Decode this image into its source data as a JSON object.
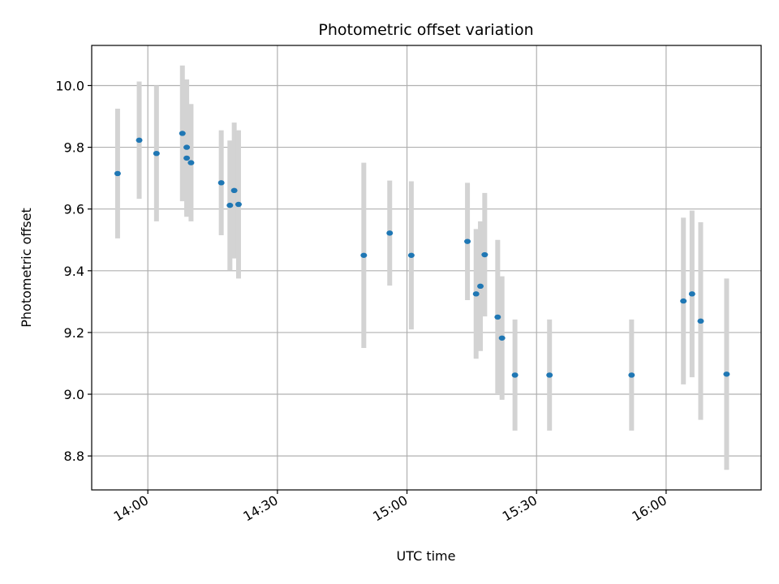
{
  "chart_data": {
    "type": "scatter",
    "title": "Photometric offset variation",
    "xlabel": "UTC time",
    "ylabel": "Photometric offset",
    "x_ticks": [
      "14:00",
      "14:30",
      "15:00",
      "15:30",
      "16:00"
    ],
    "y_ticks": [
      "8.8",
      "9.0",
      "9.2",
      "9.4",
      "9.6",
      "9.8",
      "10.0"
    ],
    "xlim": [
      "13:47",
      "16:22"
    ],
    "ylim": [
      8.69,
      10.13
    ],
    "grid": true,
    "point_color": "#1f77b4",
    "errorbar_color": "#d3d3d3",
    "series": [
      {
        "points": [
          {
            "x": "13:53",
            "y": 9.715,
            "err": 0.21
          },
          {
            "x": "13:58",
            "y": 9.823,
            "err": 0.19
          },
          {
            "x": "14:02",
            "y": 9.78,
            "err": 0.22
          },
          {
            "x": "14:08",
            "y": 9.845,
            "err": 0.22
          },
          {
            "x": "14:09",
            "y": 9.8,
            "err": 0.22
          },
          {
            "x": "14:09",
            "y": 9.765,
            "err": 0.19
          },
          {
            "x": "14:10",
            "y": 9.75,
            "err": 0.19
          },
          {
            "x": "14:17",
            "y": 9.685,
            "err": 0.17
          },
          {
            "x": "14:19",
            "y": 9.612,
            "err": 0.21
          },
          {
            "x": "14:20",
            "y": 9.66,
            "err": 0.22
          },
          {
            "x": "14:21",
            "y": 9.615,
            "err": 0.24
          },
          {
            "x": "14:50",
            "y": 9.45,
            "err": 0.3
          },
          {
            "x": "14:56",
            "y": 9.522,
            "err": 0.17
          },
          {
            "x": "15:01",
            "y": 9.45,
            "err": 0.24
          },
          {
            "x": "15:14",
            "y": 9.495,
            "err": 0.19
          },
          {
            "x": "15:16",
            "y": 9.325,
            "err": 0.21
          },
          {
            "x": "15:17",
            "y": 9.35,
            "err": 0.21
          },
          {
            "x": "15:18",
            "y": 9.452,
            "err": 0.2
          },
          {
            "x": "15:21",
            "y": 9.25,
            "err": 0.25
          },
          {
            "x": "15:22",
            "y": 9.182,
            "err": 0.2
          },
          {
            "x": "15:25",
            "y": 9.062,
            "err": 0.18
          },
          {
            "x": "15:33",
            "y": 9.062,
            "err": 0.18
          },
          {
            "x": "15:52",
            "y": 9.062,
            "err": 0.18
          },
          {
            "x": "16:04",
            "y": 9.302,
            "err": 0.27
          },
          {
            "x": "16:06",
            "y": 9.325,
            "err": 0.27
          },
          {
            "x": "16:08",
            "y": 9.237,
            "err": 0.32
          },
          {
            "x": "16:14",
            "y": 9.065,
            "err": 0.31
          }
        ]
      }
    ]
  }
}
